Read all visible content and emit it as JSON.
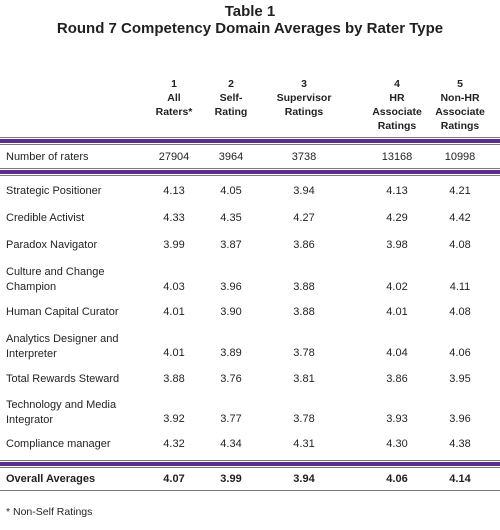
{
  "title": {
    "line1": "Table 1",
    "line2": "Round 7 Competency Domain Averages by Rater Type"
  },
  "columns": [
    {
      "num": "1",
      "label": "All\nRaters*"
    },
    {
      "num": "2",
      "label": "Self-\nRating"
    },
    {
      "num": "3",
      "label": "Supervisor\nRatings"
    },
    {
      "num": "4",
      "label": "HR\nAssociate\nRatings"
    },
    {
      "num": "5",
      "label": "Non-HR\nAssociate\nRatings"
    }
  ],
  "raters": {
    "label": "Number of raters",
    "values": [
      "27904",
      "3964",
      "3738",
      "13168",
      "10998"
    ]
  },
  "rows": [
    {
      "label": "Strategic Positioner",
      "values": [
        "4.13",
        "4.05",
        "3.94",
        "4.13",
        "4.21"
      ]
    },
    {
      "label": "Credible Activist",
      "values": [
        "4.33",
        "4.35",
        "4.27",
        "4.29",
        "4.42"
      ]
    },
    {
      "label": "Paradox Navigator",
      "values": [
        "3.99",
        "3.87",
        "3.86",
        "3.98",
        "4.08"
      ]
    },
    {
      "label": "Culture and Change\nChampion",
      "values": [
        "4.03",
        "3.96",
        "3.88",
        "4.02",
        "4.11"
      ]
    },
    {
      "label": "Human Capital Curator",
      "values": [
        "4.01",
        "3.90",
        "3.88",
        "4.01",
        "4.08"
      ]
    },
    {
      "label": "Analytics Designer and\nInterpreter",
      "values": [
        "4.01",
        "3.89",
        "3.78",
        "4.04",
        "4.06"
      ]
    },
    {
      "label": "Total Rewards Steward",
      "values": [
        "3.88",
        "3.76",
        "3.81",
        "3.86",
        "3.95"
      ]
    },
    {
      "label": "Technology and Media\nIntegrator",
      "values": [
        "3.92",
        "3.77",
        "3.78",
        "3.93",
        "3.96"
      ]
    },
    {
      "label": "Compliance manager",
      "values": [
        "4.32",
        "4.34",
        "4.31",
        "4.30",
        "4.38"
      ]
    }
  ],
  "overall": {
    "label": "Overall Averages",
    "values": [
      "4.07",
      "3.99",
      "3.94",
      "4.06",
      "4.14"
    ]
  },
  "footnote": "* Non-Self Ratings"
}
